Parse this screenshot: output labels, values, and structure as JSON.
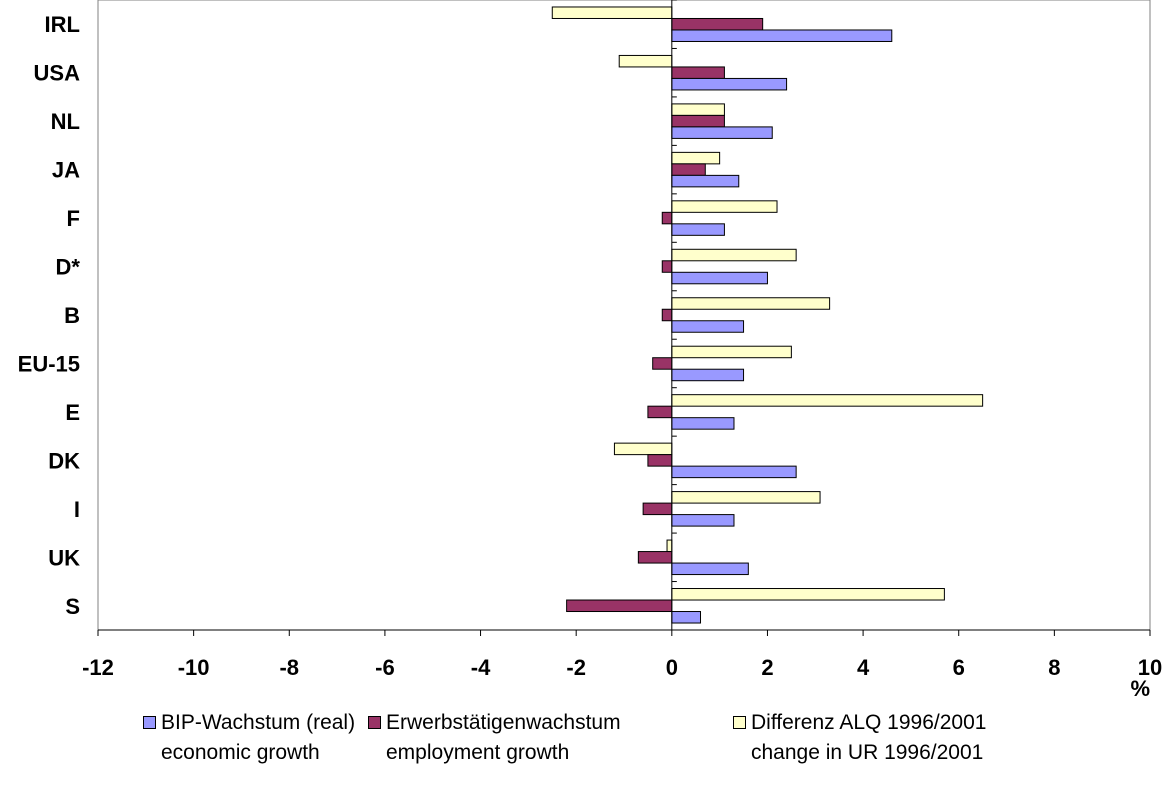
{
  "chart_data": {
    "type": "bar",
    "orientation": "horizontal",
    "categories": [
      "IRL",
      "USA",
      "NL",
      "JA",
      "F",
      "D*",
      "B",
      "EU-15",
      "E",
      "DK",
      "I",
      "UK",
      "S"
    ],
    "series": [
      {
        "name": "Differenz ALQ 1996/2001",
        "name_en": "change in UR 1996/2001",
        "color": "#FFFFCC",
        "values": [
          -2.5,
          -1.1,
          1.1,
          1.0,
          2.2,
          2.6,
          3.3,
          2.5,
          6.5,
          -1.2,
          3.1,
          -0.1,
          5.7
        ]
      },
      {
        "name": "Erwerbstätigenwachstum",
        "name_en": "employment growth",
        "color": "#993366",
        "values": [
          1.9,
          1.1,
          1.1,
          0.7,
          -0.2,
          -0.2,
          -0.2,
          -0.4,
          -0.5,
          -0.5,
          -0.6,
          -0.7,
          -2.2
        ]
      },
      {
        "name": "BIP-Wachstum (real)",
        "name_en": "economic growth",
        "color": "#9999FF",
        "values": [
          4.6,
          2.4,
          2.1,
          1.4,
          1.1,
          2.0,
          1.5,
          1.5,
          1.3,
          2.6,
          1.3,
          1.6,
          0.6
        ]
      }
    ],
    "xlim": [
      -12,
      10
    ],
    "xticks": [
      "-12",
      "-10",
      "-8",
      "-6",
      "-4",
      "-2",
      "0",
      "2",
      "4",
      "6",
      "8",
      "10"
    ],
    "xunit": "%",
    "grid": false,
    "legend_position": "bottom"
  },
  "legend": [
    {
      "line1": "BIP-Wachstum (real)",
      "line2": "economic growth",
      "color": "#9999FF"
    },
    {
      "line1": "Erwerbstätigenwachstum",
      "line2": "employment growth",
      "color": "#993366"
    },
    {
      "line1": "Differenz ALQ 1996/2001",
      "line2": "change in UR 1996/2001",
      "color": "#FFFFCC"
    }
  ]
}
